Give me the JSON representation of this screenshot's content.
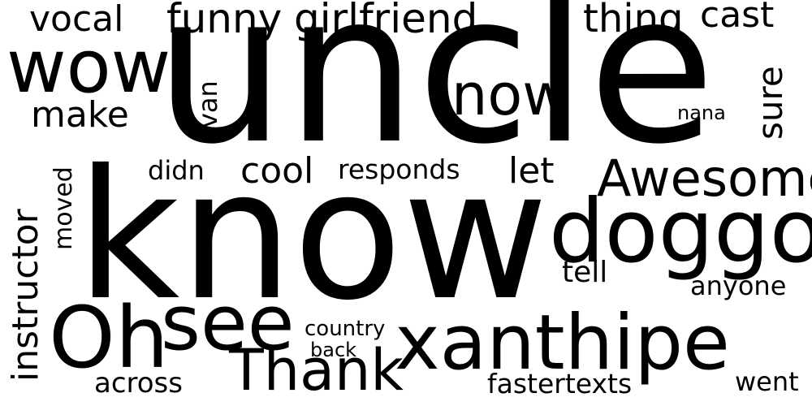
{
  "words": {
    "vocal": "vocal",
    "funny": "funny",
    "girlfriend": "girlfriend",
    "thing": "thing",
    "cast": "cast",
    "wow": "wow",
    "uncle": "uncle",
    "now": "now",
    "sure": "sure",
    "make": "make",
    "van": "van",
    "nana": "nana",
    "instructor": "instructor",
    "moved": "moved",
    "didn": "didn",
    "cool": "cool",
    "responds": "responds",
    "let": "let",
    "awesome": "Awesome",
    "know": "know",
    "doggo": "doggo",
    "tell": "tell",
    "anyone": "anyone",
    "oh": "Oh",
    "see": "see",
    "xanthipe": "xanthipe",
    "country": "country",
    "back": "back",
    "thank": "Thank",
    "across": "across",
    "fastertexts": "fastertexts",
    "went": "went"
  },
  "colors": {
    "text": "#000000",
    "background": "#ffffff"
  }
}
